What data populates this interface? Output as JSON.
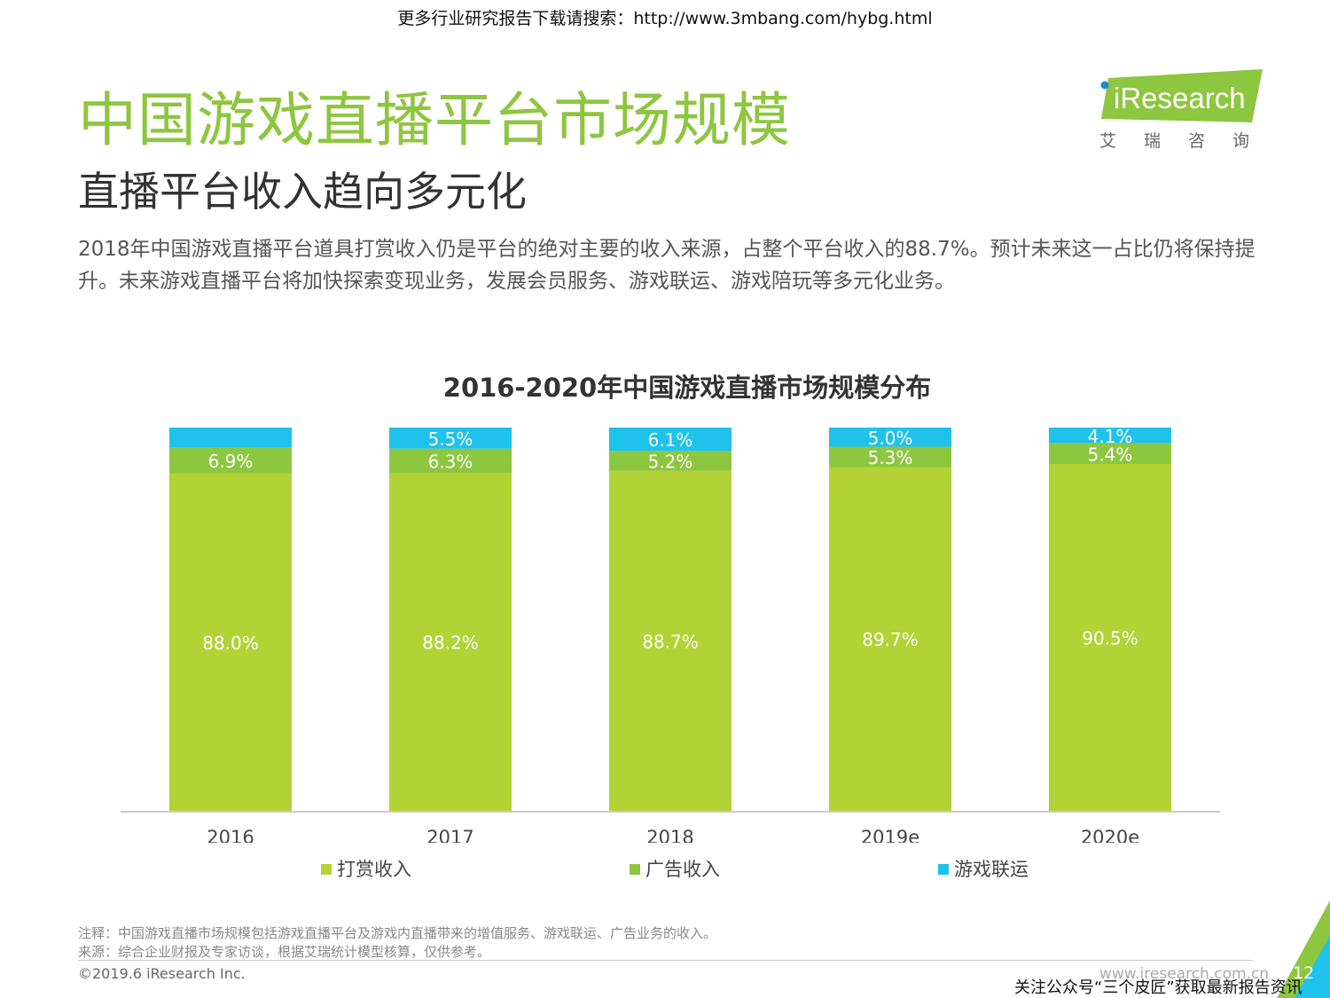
{
  "banner": "更多行业研究报告下载请搜索：http://www.3mbang.com/hybg.html",
  "header": {
    "title": "中国游戏直播平台市场规模",
    "subtitle": "直播平台收入趋向多元化",
    "summary": "2018年中国游戏直播平台道具打赏收入仍是平台的绝对主要的收入来源，占整个平台收入的88.7%。预计未来这一占比仍将保持提升。未来游戏直播平台将加快探索变现业务，发展会员服务、游戏联运、游戏陪玩等多元化业务。"
  },
  "logo": {
    "wordmark": "iResearch",
    "cn": "艾瑞咨询"
  },
  "colors": {
    "brand_green": "#8dc63f",
    "tips": "#b2d235",
    "ads": "#8dc63f",
    "game": "#1ec2ea"
  },
  "chart_data": {
    "type": "bar",
    "stacked": true,
    "title": "2016-2020年中国游戏直播市场规模分布",
    "categories": [
      "2016",
      "2017",
      "2018",
      "2019e",
      "2020e"
    ],
    "series": [
      {
        "name": "打赏收入",
        "values": [
          88.0,
          88.2,
          88.7,
          89.7,
          90.5
        ]
      },
      {
        "name": "广告收入",
        "values": [
          6.9,
          6.3,
          5.2,
          5.3,
          5.4
        ]
      },
      {
        "name": "游戏联运",
        "values": [
          5.1,
          5.5,
          6.1,
          5.0,
          4.1
        ]
      }
    ],
    "labels": [
      [
        "88.0%",
        "88.2%",
        "88.7%",
        "89.7%",
        "90.5%"
      ],
      [
        "6.9%",
        "6.3%",
        "5.2%",
        "5.3%",
        "5.4%"
      ],
      [
        "",
        "5.5%",
        "6.1%",
        "5.0%",
        "4.1%"
      ]
    ],
    "ylim": [
      0,
      100
    ],
    "legend_position": "bottom",
    "grid": false
  },
  "notes": {
    "note": "注释：中国游戏直播市场规模包括游戏直播平台及游戏内直播带来的增值服务、游戏联运、广告业务的收入。",
    "source": "来源：综合企业财报及专家访谈，根据艾瑞统计模型核算，仅供参考。"
  },
  "footer": {
    "copyright": "©2019.6 iResearch Inc.",
    "site": "www.iresearch.com.cn",
    "page": "12",
    "wechat": "关注公众号“三个皮匠”获取最新报告资讯"
  }
}
